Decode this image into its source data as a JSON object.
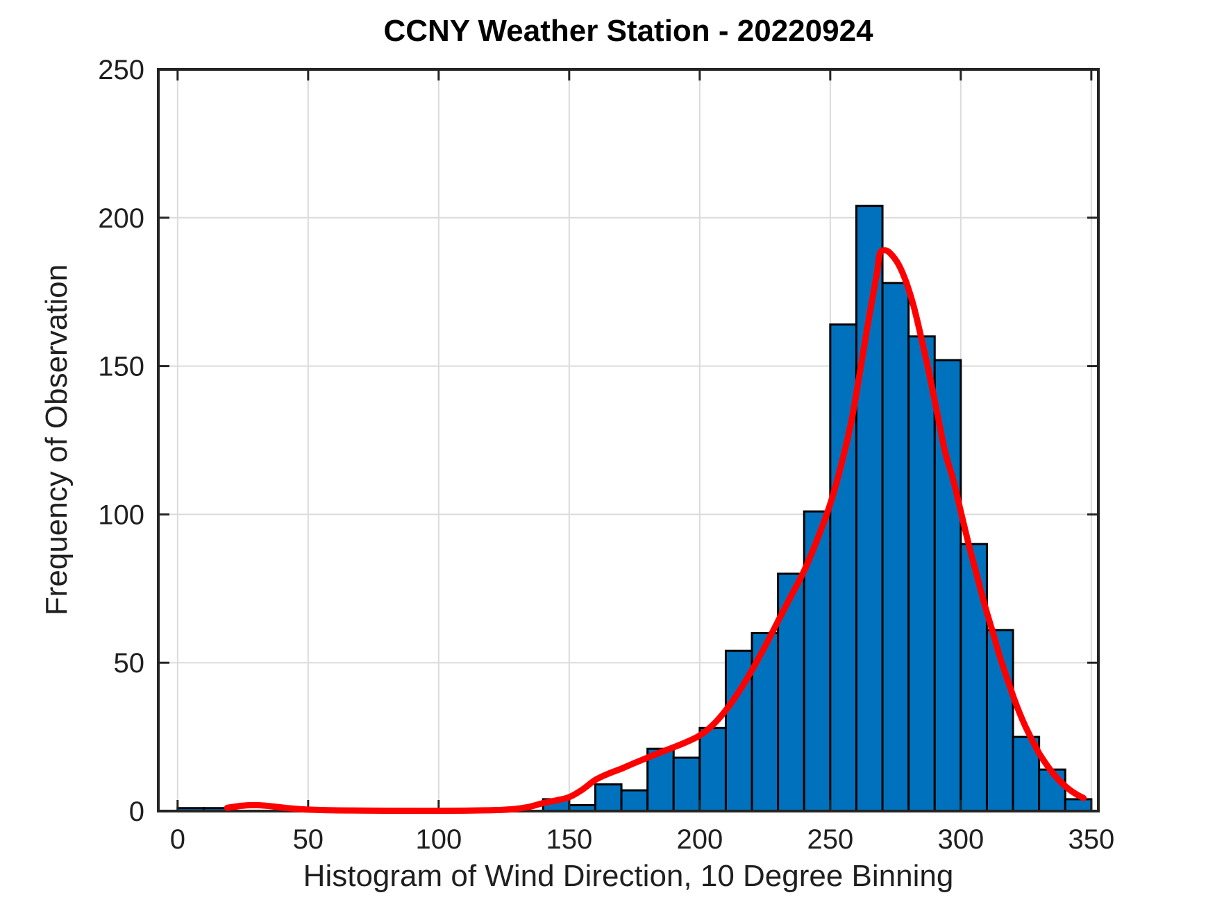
{
  "title": "CCNY Weather Station - 20220924",
  "x_axis": {
    "label": "Histogram of Wind Direction, 10 Degree Binning",
    "ticks": [
      0,
      50,
      100,
      150,
      200,
      250,
      300,
      350
    ],
    "min": -7.4,
    "max": 352.7,
    "grid": true
  },
  "y_axis": {
    "label": "Frequency of Observation",
    "ticks": [
      0,
      50,
      100,
      150,
      200,
      250
    ],
    "min": 0,
    "max": 250,
    "grid": true
  },
  "chart_data": {
    "type": "bar",
    "subtype": "histogram-with-fit-curve",
    "title": "CCNY Weather Station - 20220924",
    "xlabel": "Histogram of Wind Direction, 10 Degree Binning",
    "ylabel": "Frequency of Observation",
    "xlim": [
      -7.4,
      352.7
    ],
    "ylim": [
      0,
      250
    ],
    "bin_width": 10,
    "bin_left_edges": [
      0,
      10,
      20,
      30,
      40,
      50,
      60,
      70,
      80,
      90,
      100,
      110,
      120,
      130,
      140,
      150,
      160,
      170,
      180,
      190,
      200,
      210,
      220,
      230,
      240,
      250,
      260,
      270,
      280,
      290,
      300,
      310,
      320,
      330,
      340
    ],
    "counts": [
      1,
      1,
      0,
      0,
      0,
      0,
      0,
      0,
      0,
      0,
      0,
      0,
      0,
      0,
      4,
      2,
      9,
      7,
      21,
      18,
      28,
      54,
      60,
      80,
      101,
      164,
      204,
      178,
      160,
      152,
      90,
      61,
      25,
      14,
      4
    ],
    "fit_curve": {
      "name": "kernel-fit-curve",
      "x": [
        19,
        22,
        26,
        30,
        34,
        38,
        42,
        46,
        50,
        55,
        60,
        70,
        80,
        90,
        100,
        110,
        118,
        125,
        130,
        135,
        140,
        145,
        150,
        155,
        160,
        165,
        170,
        175,
        180,
        185,
        190,
        195,
        200,
        205,
        210,
        215,
        220,
        225,
        230,
        235,
        240,
        245,
        250,
        254,
        258,
        261,
        264,
        266,
        268,
        269,
        271,
        273,
        276,
        279,
        282,
        285,
        288,
        291,
        294,
        297,
        300,
        303,
        306,
        309,
        312,
        315,
        318,
        321,
        324,
        327,
        330,
        333,
        336,
        339,
        342,
        345,
        347
      ],
      "y": [
        1.1,
        1.5,
        1.9,
        2.0,
        1.8,
        1.4,
        1.0,
        0.7,
        0.5,
        0.35,
        0.25,
        0.18,
        0.12,
        0.1,
        0.1,
        0.15,
        0.25,
        0.45,
        0.8,
        1.5,
        2.7,
        3.6,
        4.7,
        7.2,
        10.5,
        12.6,
        14.3,
        16.2,
        18.0,
        19.8,
        21.5,
        23.3,
        25.5,
        29.0,
        34.0,
        40.2,
        47.5,
        55.5,
        64.0,
        72.5,
        81.0,
        91.5,
        103.5,
        116.0,
        131.0,
        146.0,
        162.0,
        172.0,
        182.0,
        188.0,
        189.0,
        188.0,
        184.5,
        178.5,
        170.0,
        159.0,
        147.0,
        134.0,
        121.0,
        112.0,
        101.0,
        90.0,
        80.0,
        70.0,
        61.0,
        52.0,
        44.0,
        36.5,
        30.0,
        24.5,
        19.5,
        15.5,
        12.0,
        9.2,
        7.0,
        5.3,
        4.4
      ]
    },
    "legend": null
  },
  "colors": {
    "bar_fill": "#0072BD",
    "bar_edge": "#000000",
    "curve": "#FF0000",
    "grid": "#DBDBDB",
    "axis": "#242424",
    "text": "#1F1F1F",
    "background": "#FFFFFF"
  }
}
